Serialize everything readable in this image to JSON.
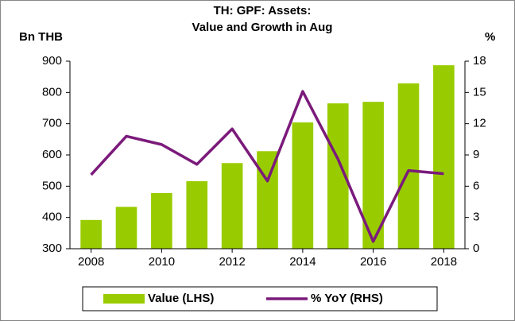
{
  "chart_data": {
    "type": "bar_line",
    "title": [
      "TH: GPF: Assets:",
      "Value and Growth in Aug"
    ],
    "y_label": "Bn THB",
    "y2_label": "%",
    "x": [
      2008,
      2009,
      2010,
      2011,
      2012,
      2013,
      2014,
      2015,
      2016,
      2017,
      2018
    ],
    "xlim": [
      2007.4,
      2018.6
    ],
    "xticks": [
      2008,
      2010,
      2012,
      2014,
      2016,
      2018
    ],
    "ylim": [
      300,
      900
    ],
    "yticks": [
      300,
      400,
      500,
      600,
      700,
      800,
      900
    ],
    "y2lim": [
      0,
      18
    ],
    "y2ticks": [
      0,
      3,
      6,
      9,
      12,
      15,
      18
    ],
    "series": [
      {
        "name": "Value (LHS)",
        "kind": "bar",
        "color": "#99cc00",
        "values": [
          392,
          434,
          478,
          516,
          574,
          612,
          704,
          765,
          770,
          829,
          887
        ]
      },
      {
        "name": "% YoY (RHS)",
        "kind": "line",
        "axis": "y2",
        "color": "#7b1a7b",
        "values": [
          7.1,
          10.8,
          10.0,
          8.1,
          11.5,
          6.5,
          15.1,
          8.6,
          0.7,
          7.5,
          7.2
        ]
      }
    ],
    "legend": "bottom"
  }
}
